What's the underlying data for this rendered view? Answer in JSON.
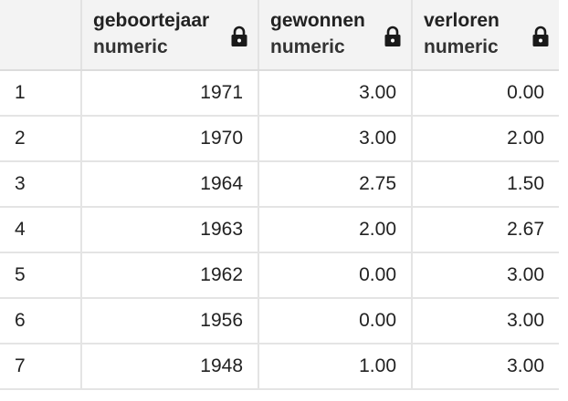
{
  "columns": [
    {
      "name": "geboortejaar",
      "type": "numeric"
    },
    {
      "name": "gewonnen",
      "type": "numeric"
    },
    {
      "name": "verloren",
      "type": "numeric"
    }
  ],
  "rows": [
    {
      "index": "1",
      "geboortejaar": "1971",
      "gewonnen": "3.00",
      "verloren": "0.00"
    },
    {
      "index": "2",
      "geboortejaar": "1970",
      "gewonnen": "3.00",
      "verloren": "2.00"
    },
    {
      "index": "3",
      "geboortejaar": "1964",
      "gewonnen": "2.75",
      "verloren": "1.50"
    },
    {
      "index": "4",
      "geboortejaar": "1963",
      "gewonnen": "2.00",
      "verloren": "2.67"
    },
    {
      "index": "5",
      "geboortejaar": "1962",
      "gewonnen": "0.00",
      "verloren": "3.00"
    },
    {
      "index": "6",
      "geboortejaar": "1956",
      "gewonnen": "0.00",
      "verloren": "3.00"
    },
    {
      "index": "7",
      "geboortejaar": "1948",
      "gewonnen": "1.00",
      "verloren": "3.00"
    }
  ],
  "icons": {
    "column_lock": "lock-icon"
  },
  "colors": {
    "header_bg": "#f3f3f3",
    "grid_line": "#e4e4e4",
    "text": "#222222"
  }
}
